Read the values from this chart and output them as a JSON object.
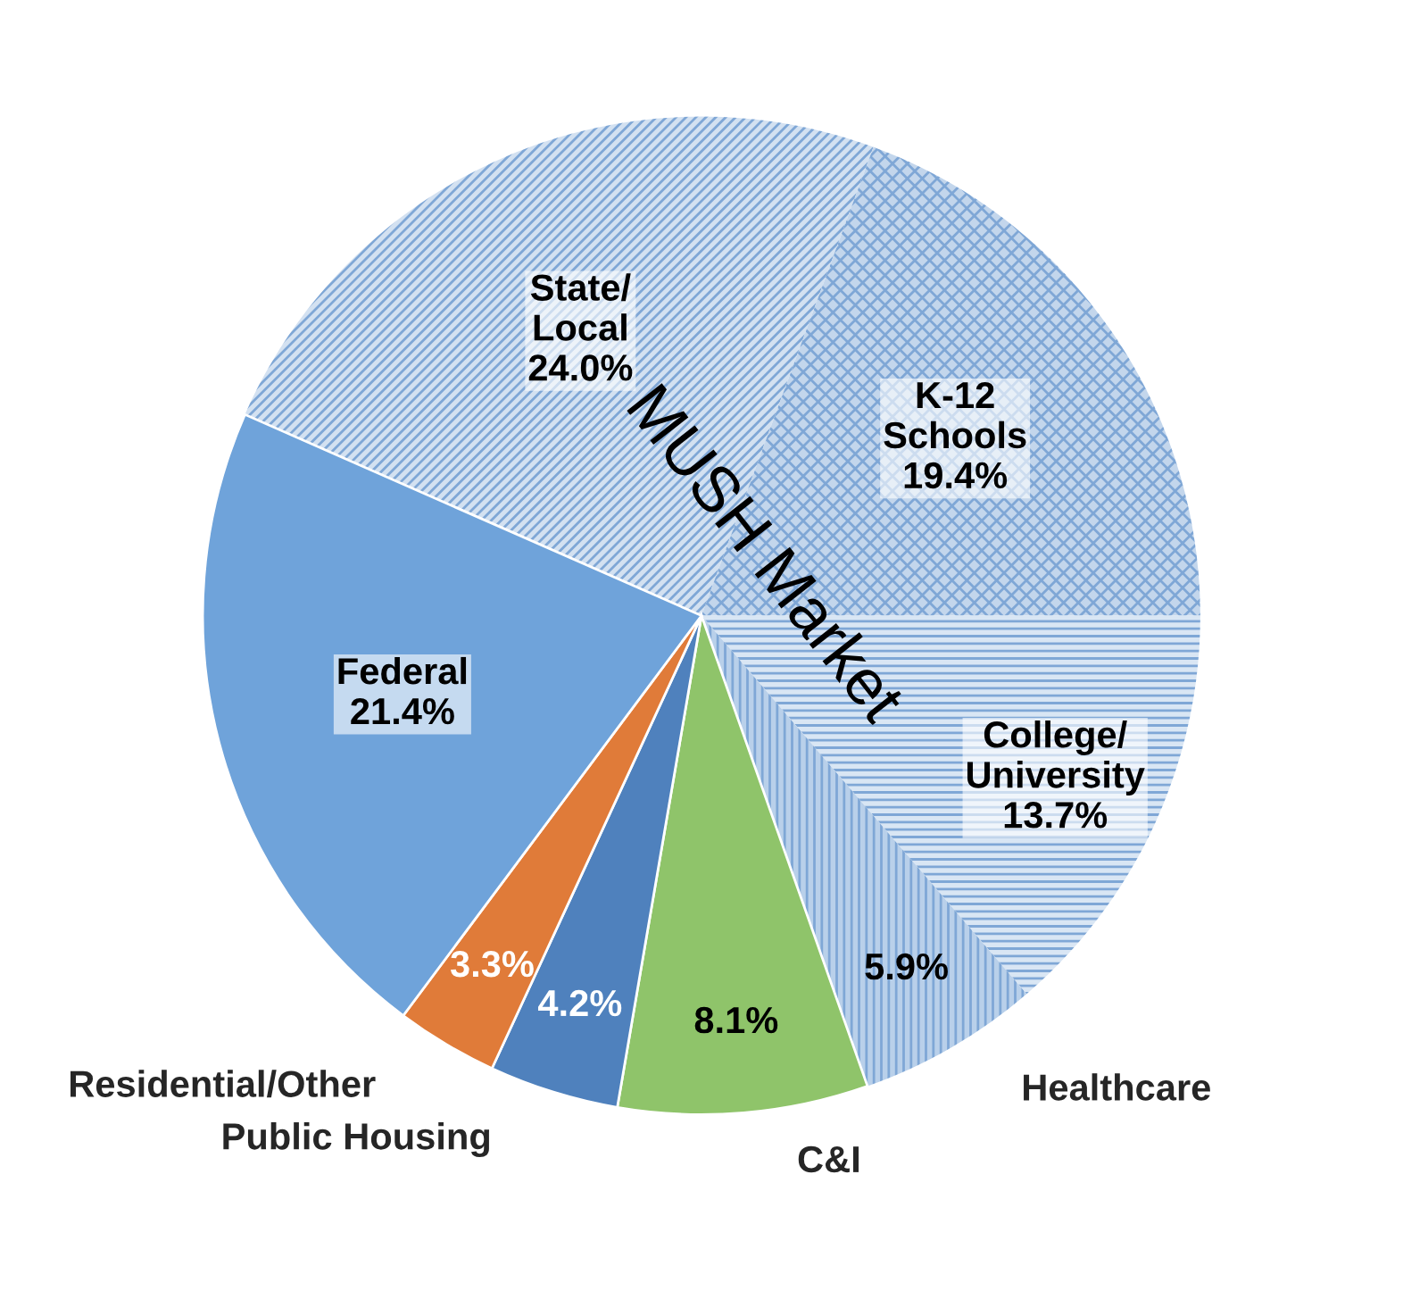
{
  "chart_data": {
    "type": "pie",
    "categories": [
      "State/Local",
      "K-12 Schools",
      "College/University",
      "Healthcare",
      "C&I",
      "Public Housing",
      "Residential/Other",
      "Federal"
    ],
    "values": [
      24.0,
      19.4,
      13.7,
      5.9,
      8.1,
      4.2,
      3.3,
      21.4
    ],
    "value_labels": [
      "24.0%",
      "19.4%",
      "13.7%",
      "5.9%",
      "8.1%",
      "4.2%",
      "3.3%",
      "21.4%"
    ],
    "colors": [
      "#d3e1f1",
      "#c3d6ec",
      "#d9e6f4",
      "#b9d0ea",
      "#8fc46a",
      "#4f81bd",
      "#e07b39",
      "#6fa3da"
    ],
    "annotations": [
      "MUSH Market"
    ],
    "legend": false
  }
}
